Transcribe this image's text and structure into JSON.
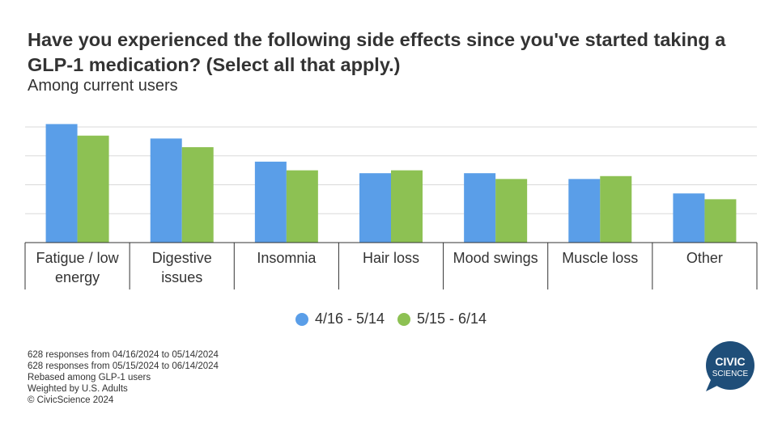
{
  "title": "Have you experienced the following side effects since you've started taking a GLP-1 medication? (Select all that apply.)",
  "subtitle": "Among current users",
  "colors": {
    "series1": "#5a9ee8",
    "series2": "#8dc153",
    "grid": "#d9d9d9",
    "axis": "#333333",
    "logo": "#1f4e79"
  },
  "chart_data": {
    "type": "bar",
    "categories": [
      "Fatigue / low energy",
      "Digestive issues",
      "Insomnia",
      "Hair loss",
      "Mood swings",
      "Muscle loss",
      "Other"
    ],
    "category_lines": [
      [
        "Fatigue / low",
        "energy"
      ],
      [
        "Digestive",
        "issues"
      ],
      [
        "Insomnia"
      ],
      [
        "Hair loss"
      ],
      [
        "Mood swings"
      ],
      [
        "Muscle loss"
      ],
      [
        "Other"
      ]
    ],
    "series": [
      {
        "name": "4/16 - 5/14",
        "values": [
          41,
          36,
          28,
          24,
          24,
          22,
          17
        ]
      },
      {
        "name": "5/15 - 6/14",
        "values": [
          37,
          33,
          25,
          25,
          22,
          23,
          15
        ]
      }
    ],
    "ylim": [
      0,
      40
    ],
    "grid": true,
    "legend_position": "bottom"
  },
  "footnotes": [
    "628 responses from 04/16/2024 to 05/14/2024",
    "628 responses from 05/15/2024 to 06/14/2024",
    "Rebased among GLP-1 users",
    "Weighted by U.S. Adults",
    "© CivicScience 2024"
  ],
  "logo": {
    "line1": "CIVIC",
    "line2": "SCIENCE"
  }
}
